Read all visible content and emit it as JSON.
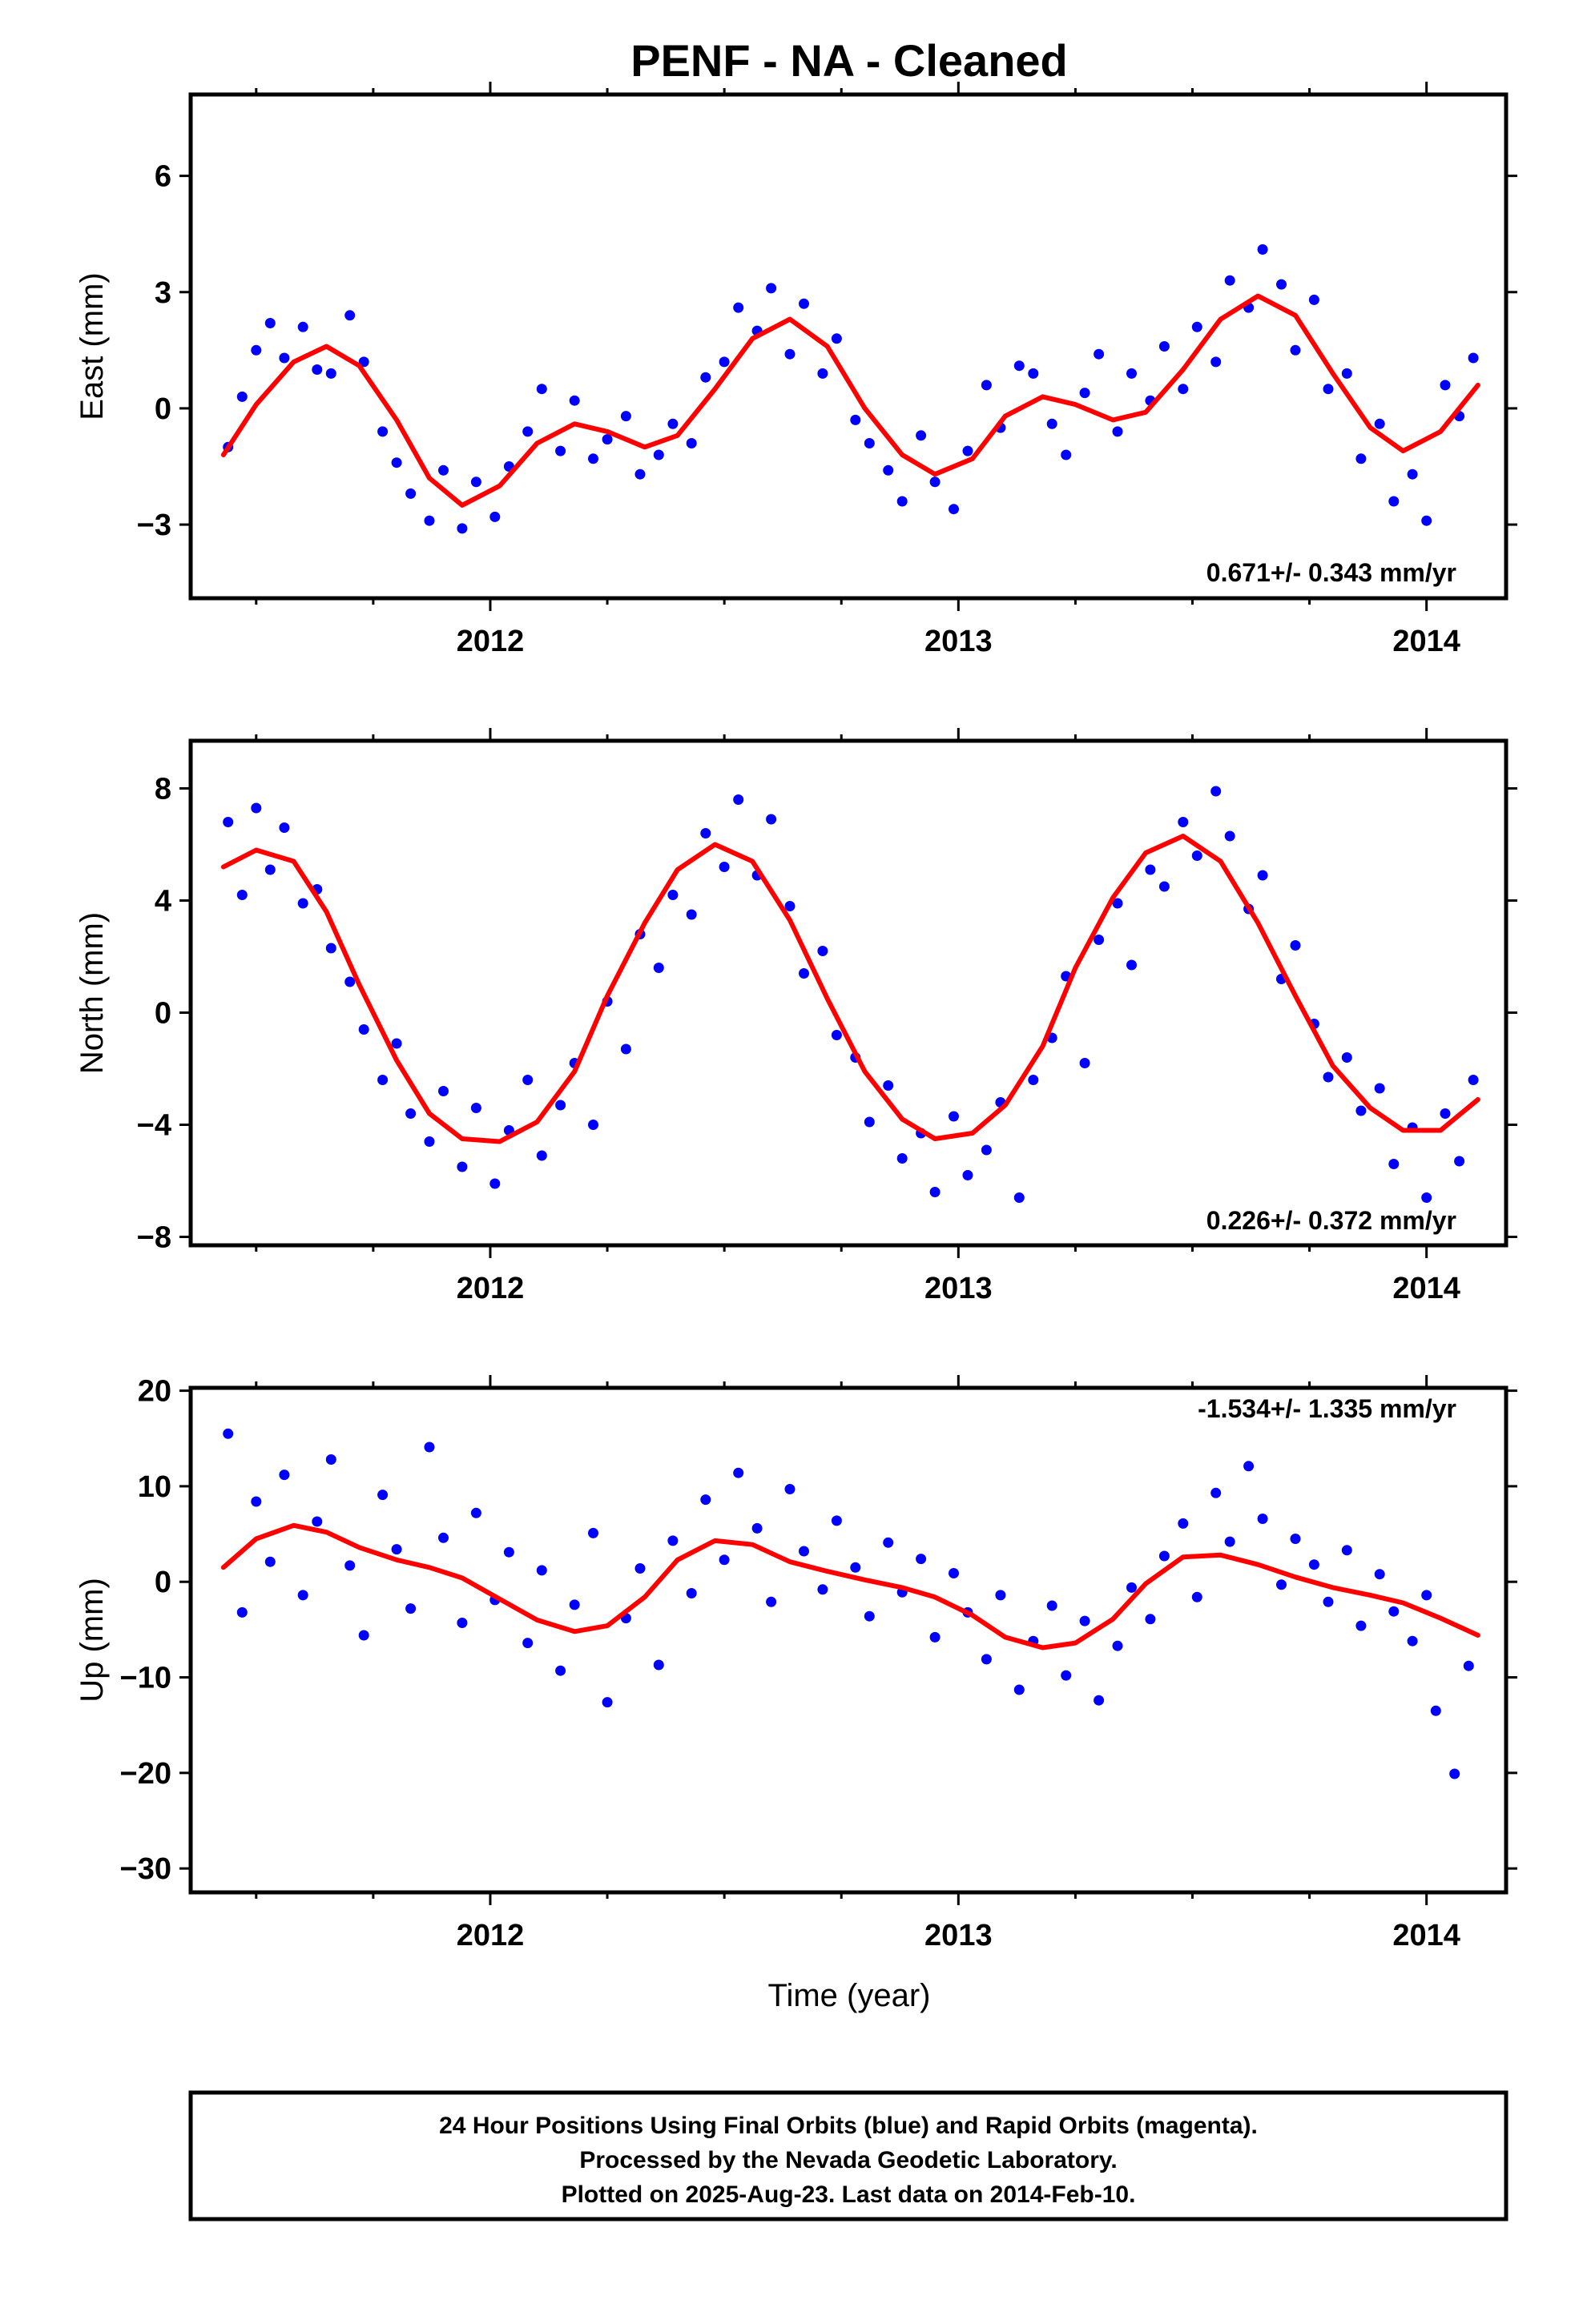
{
  "title": "PENF  - NA - Cleaned",
  "xlabel": "Time (year)",
  "footer": {
    "line1": "24 Hour Positions Using Final Orbits (blue) and Rapid Orbits (magenta).",
    "line2": "Processed by the Nevada Geodetic Laboratory.",
    "line3": "Plotted on 2025-Aug-23. Last data on 2014-Feb-10."
  },
  "colors": {
    "points": "#0000ff",
    "fit": "#ff0000",
    "axis": "#000000"
  },
  "chart_data": [
    {
      "type": "scatter",
      "ylabel": "East (mm)",
      "rate": "0.671+/- 0.343 mm/yr",
      "xlim": [
        2011.36,
        2014.17
      ],
      "ylim": [
        -4.9,
        8.1
      ],
      "yticks": [
        -3,
        0,
        3,
        6
      ],
      "xticks": [
        2012,
        2013,
        2014
      ],
      "series": [
        {
          "role": "fit",
          "x": [
            2011.43,
            2011.5,
            2011.58,
            2011.65,
            2011.72,
            2011.8,
            2011.87,
            2011.94,
            2012.02,
            2012.1,
            2012.18,
            2012.25,
            2012.33,
            2012.4,
            2012.48,
            2012.56,
            2012.64,
            2012.72,
            2012.8,
            2012.88,
            2012.95,
            2013.03,
            2013.1,
            2013.18,
            2013.25,
            2013.33,
            2013.4,
            2013.48,
            2013.56,
            2013.64,
            2013.72,
            2013.8,
            2013.88,
            2013.95,
            2014.03,
            2014.11
          ],
          "y": [
            -1.2,
            0.1,
            1.2,
            1.6,
            1.1,
            -0.3,
            -1.8,
            -2.5,
            -2.0,
            -0.9,
            -0.4,
            -0.6,
            -1.0,
            -0.7,
            0.5,
            1.8,
            2.3,
            1.6,
            0.0,
            -1.2,
            -1.7,
            -1.3,
            -0.2,
            0.3,
            0.1,
            -0.3,
            -0.1,
            1.0,
            2.3,
            2.9,
            2.4,
            0.9,
            -0.5,
            -1.1,
            -0.6,
            0.6
          ]
        },
        {
          "role": "points",
          "x": [
            2011.44,
            2011.47,
            2011.5,
            2011.53,
            2011.56,
            2011.6,
            2011.63,
            2011.66,
            2011.7,
            2011.73,
            2011.77,
            2011.8,
            2011.83,
            2011.87,
            2011.9,
            2011.94,
            2011.97,
            2012.01,
            2012.04,
            2012.08,
            2012.11,
            2012.15,
            2012.18,
            2012.22,
            2012.25,
            2012.29,
            2012.32,
            2012.36,
            2012.39,
            2012.43,
            2012.46,
            2012.5,
            2012.53,
            2012.57,
            2012.6,
            2012.64,
            2012.67,
            2012.71,
            2012.74,
            2012.78,
            2012.81,
            2012.85,
            2012.88,
            2012.92,
            2012.95,
            2012.99,
            2013.02,
            2013.06,
            2013.09,
            2013.13,
            2013.16,
            2013.2,
            2013.23,
            2013.27,
            2013.3,
            2013.34,
            2013.37,
            2013.41,
            2013.44,
            2013.48,
            2013.51,
            2013.55,
            2013.58,
            2013.62,
            2013.65,
            2013.69,
            2013.72,
            2013.76,
            2013.79,
            2013.83,
            2013.86,
            2013.9,
            2013.93,
            2013.97,
            2014.0,
            2014.04,
            2014.07,
            2014.1
          ],
          "y": [
            -1.0,
            0.3,
            1.5,
            2.2,
            1.3,
            2.1,
            1.0,
            0.9,
            2.4,
            1.2,
            -0.6,
            -1.4,
            -2.2,
            -2.9,
            -1.6,
            -3.1,
            -1.9,
            -2.8,
            -1.5,
            -0.6,
            0.5,
            -1.1,
            0.2,
            -1.3,
            -0.8,
            -0.2,
            -1.7,
            -1.2,
            -0.4,
            -0.9,
            0.8,
            1.2,
            2.6,
            2.0,
            3.1,
            1.4,
            2.7,
            0.9,
            1.8,
            -0.3,
            -0.9,
            -1.6,
            -2.4,
            -0.7,
            -1.9,
            -2.6,
            -1.1,
            0.6,
            -0.5,
            1.1,
            0.9,
            -0.4,
            -1.2,
            0.4,
            1.4,
            -0.6,
            0.9,
            0.2,
            1.6,
            0.5,
            2.1,
            1.2,
            3.3,
            2.6,
            4.1,
            3.2,
            1.5,
            2.8,
            0.5,
            0.9,
            -1.3,
            -0.4,
            -2.4,
            -1.7,
            -2.9,
            0.6,
            -0.2,
            1.3
          ]
        }
      ]
    },
    {
      "type": "scatter",
      "ylabel": "North (mm)",
      "rate": "0.226+/- 0.372 mm/yr",
      "xlim": [
        2011.36,
        2014.17
      ],
      "ylim": [
        -8.3,
        9.7
      ],
      "yticks": [
        -8,
        -4,
        0,
        4,
        8
      ],
      "xticks": [
        2012,
        2013,
        2014
      ],
      "series": [
        {
          "role": "fit",
          "x": [
            2011.43,
            2011.5,
            2011.58,
            2011.65,
            2011.72,
            2011.8,
            2011.87,
            2011.94,
            2012.02,
            2012.1,
            2012.18,
            2012.25,
            2012.33,
            2012.4,
            2012.48,
            2012.56,
            2012.64,
            2012.72,
            2012.8,
            2012.88,
            2012.95,
            2013.03,
            2013.1,
            2013.18,
            2013.25,
            2013.33,
            2013.4,
            2013.48,
            2013.56,
            2013.64,
            2013.72,
            2013.8,
            2013.88,
            2013.95,
            2014.03,
            2014.11
          ],
          "y": [
            5.2,
            5.8,
            5.4,
            3.6,
            1.0,
            -1.7,
            -3.6,
            -4.5,
            -4.6,
            -3.9,
            -2.1,
            0.6,
            3.2,
            5.1,
            6.0,
            5.4,
            3.3,
            0.5,
            -2.1,
            -3.8,
            -4.5,
            -4.3,
            -3.3,
            -1.2,
            1.6,
            4.1,
            5.7,
            6.3,
            5.4,
            3.2,
            0.6,
            -1.9,
            -3.4,
            -4.2,
            -4.2,
            -3.1
          ]
        },
        {
          "role": "points",
          "x": [
            2011.44,
            2011.47,
            2011.5,
            2011.53,
            2011.56,
            2011.6,
            2011.63,
            2011.66,
            2011.7,
            2011.73,
            2011.77,
            2011.8,
            2011.83,
            2011.87,
            2011.9,
            2011.94,
            2011.97,
            2012.01,
            2012.04,
            2012.08,
            2012.11,
            2012.15,
            2012.18,
            2012.22,
            2012.25,
            2012.29,
            2012.32,
            2012.36,
            2012.39,
            2012.43,
            2012.46,
            2012.5,
            2012.53,
            2012.57,
            2012.6,
            2012.64,
            2012.67,
            2012.71,
            2012.74,
            2012.78,
            2012.81,
            2012.85,
            2012.88,
            2012.92,
            2012.95,
            2012.99,
            2013.02,
            2013.06,
            2013.09,
            2013.13,
            2013.16,
            2013.2,
            2013.23,
            2013.27,
            2013.3,
            2013.34,
            2013.37,
            2013.41,
            2013.44,
            2013.48,
            2013.51,
            2013.55,
            2013.58,
            2013.62,
            2013.65,
            2013.69,
            2013.72,
            2013.76,
            2013.79,
            2013.83,
            2013.86,
            2013.9,
            2013.93,
            2013.97,
            2014.0,
            2014.04,
            2014.07,
            2014.1
          ],
          "y": [
            6.8,
            4.2,
            7.3,
            5.1,
            6.6,
            3.9,
            4.4,
            2.3,
            1.1,
            -0.6,
            -2.4,
            -1.1,
            -3.6,
            -4.6,
            -2.8,
            -5.5,
            -3.4,
            -6.1,
            -4.2,
            -2.4,
            -5.1,
            -3.3,
            -1.8,
            -4.0,
            0.4,
            -1.3,
            2.8,
            1.6,
            4.2,
            3.5,
            6.4,
            5.2,
            7.6,
            4.9,
            6.9,
            3.8,
            1.4,
            2.2,
            -0.8,
            -1.6,
            -3.9,
            -2.6,
            -5.2,
            -4.3,
            -6.4,
            -3.7,
            -5.8,
            -4.9,
            -3.2,
            -6.6,
            -2.4,
            -0.9,
            1.3,
            -1.8,
            2.6,
            3.9,
            1.7,
            5.1,
            4.5,
            6.8,
            5.6,
            7.9,
            6.3,
            3.7,
            4.9,
            1.2,
            2.4,
            -0.4,
            -2.3,
            -1.6,
            -3.5,
            -2.7,
            -5.4,
            -4.1,
            -6.6,
            -3.6,
            -5.3,
            -2.4
          ]
        }
      ]
    },
    {
      "type": "scatter",
      "ylabel": "Up (mm)",
      "rate": "-1.534+/- 1.335 mm/yr",
      "xlim": [
        2011.36,
        2014.17
      ],
      "ylim": [
        -32.5,
        20.3
      ],
      "yticks": [
        -30,
        -20,
        -10,
        0,
        10,
        20
      ],
      "xticks": [
        2012,
        2013,
        2014
      ],
      "series": [
        {
          "role": "fit",
          "x": [
            2011.43,
            2011.5,
            2011.58,
            2011.65,
            2011.72,
            2011.8,
            2011.87,
            2011.94,
            2012.02,
            2012.1,
            2012.18,
            2012.25,
            2012.33,
            2012.4,
            2012.48,
            2012.56,
            2012.64,
            2012.72,
            2012.8,
            2012.88,
            2012.95,
            2013.03,
            2013.1,
            2013.18,
            2013.25,
            2013.33,
            2013.4,
            2013.48,
            2013.56,
            2013.64,
            2013.72,
            2013.8,
            2013.88,
            2013.95,
            2014.03,
            2014.11
          ],
          "y": [
            1.5,
            4.5,
            5.9,
            5.2,
            3.6,
            2.3,
            1.5,
            0.4,
            -1.8,
            -4.0,
            -5.2,
            -4.6,
            -1.6,
            2.3,
            4.3,
            3.9,
            2.1,
            1.1,
            0.2,
            -0.6,
            -1.6,
            -3.5,
            -5.8,
            -6.9,
            -6.4,
            -3.9,
            -0.2,
            2.6,
            2.8,
            1.8,
            0.5,
            -0.6,
            -1.4,
            -2.2,
            -3.8,
            -5.6
          ]
        },
        {
          "role": "points",
          "x": [
            2011.44,
            2011.47,
            2011.5,
            2011.53,
            2011.56,
            2011.6,
            2011.63,
            2011.66,
            2011.7,
            2011.73,
            2011.77,
            2011.8,
            2011.83,
            2011.87,
            2011.9,
            2011.94,
            2011.97,
            2012.01,
            2012.04,
            2012.08,
            2012.11,
            2012.15,
            2012.18,
            2012.22,
            2012.25,
            2012.29,
            2012.32,
            2012.36,
            2012.39,
            2012.43,
            2012.46,
            2012.5,
            2012.53,
            2012.57,
            2012.6,
            2012.64,
            2012.67,
            2012.71,
            2012.74,
            2012.78,
            2012.81,
            2012.85,
            2012.88,
            2012.92,
            2012.95,
            2012.99,
            2013.02,
            2013.06,
            2013.09,
            2013.13,
            2013.16,
            2013.2,
            2013.23,
            2013.27,
            2013.3,
            2013.34,
            2013.37,
            2013.41,
            2013.44,
            2013.48,
            2013.51,
            2013.55,
            2013.58,
            2013.62,
            2013.65,
            2013.69,
            2013.72,
            2013.76,
            2013.79,
            2013.83,
            2013.86,
            2013.9,
            2013.93,
            2013.97,
            2014.0,
            2014.02,
            2014.06,
            2014.09
          ],
          "y": [
            15.5,
            -3.2,
            8.4,
            2.1,
            11.2,
            -1.4,
            6.3,
            12.8,
            1.7,
            -5.6,
            9.1,
            3.4,
            -2.8,
            14.1,
            4.6,
            -4.3,
            7.2,
            -1.9,
            3.1,
            -6.4,
            1.2,
            -9.3,
            -2.4,
            5.1,
            -12.6,
            -3.8,
            1.4,
            -8.7,
            4.3,
            -1.2,
            8.6,
            2.3,
            11.4,
            5.6,
            -2.1,
            9.7,
            3.2,
            -0.8,
            6.4,
            1.5,
            -3.6,
            4.1,
            -1.1,
            2.4,
            -5.8,
            0.9,
            -3.2,
            -8.1,
            -1.4,
            -11.3,
            -6.2,
            -2.5,
            -9.8,
            -4.1,
            -12.4,
            -6.7,
            -0.6,
            -3.9,
            2.7,
            6.1,
            -1.6,
            9.3,
            4.2,
            12.1,
            6.6,
            -0.3,
            4.5,
            1.8,
            -2.1,
            3.3,
            -4.6,
            0.8,
            -3.1,
            -6.2,
            -1.4,
            -13.5,
            -20.1,
            -8.8
          ]
        }
      ]
    }
  ]
}
